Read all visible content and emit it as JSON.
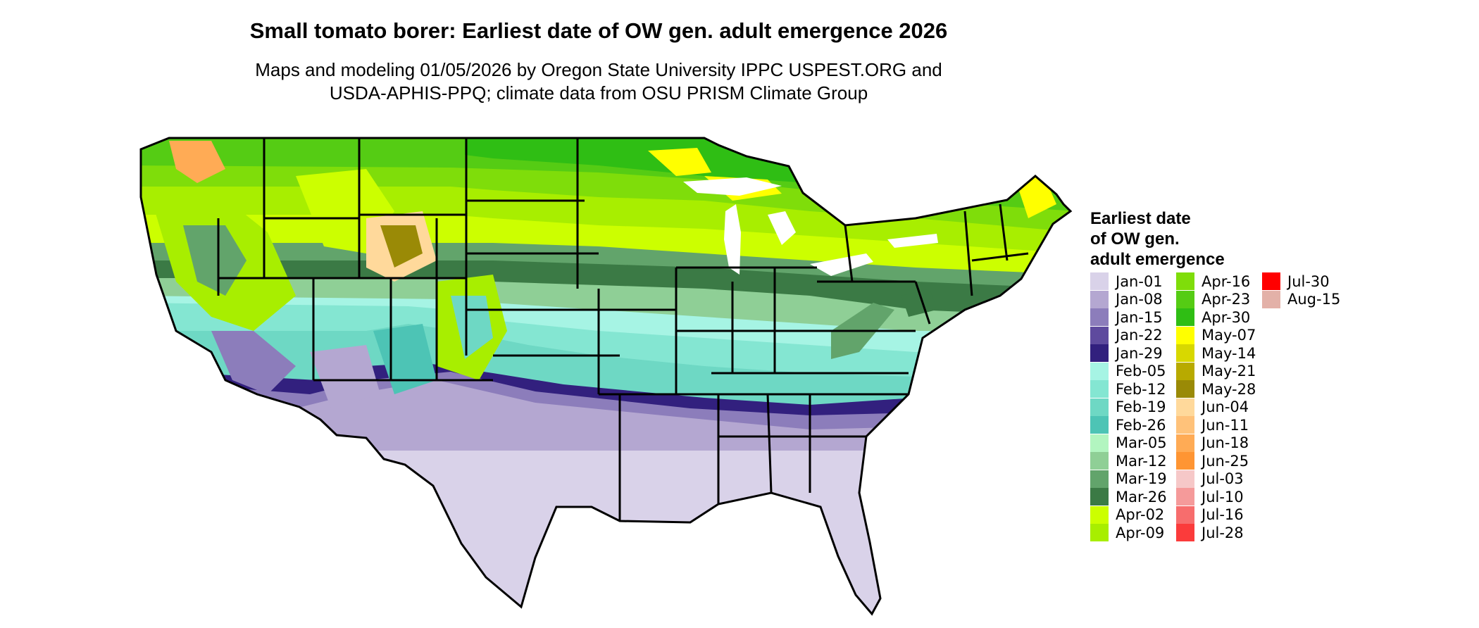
{
  "title": "Small tomato borer: Earliest date of OW gen. adult emergence 2026",
  "subtitle_line1": "Maps and modeling 01/05/2026 by Oregon State University IPPC USPEST.ORG and",
  "subtitle_line2": "USDA-APHIS-PPQ; climate data from OSU PRISM Climate Group",
  "legend": {
    "title_lines": [
      "Earliest date",
      "of OW gen.",
      "adult emergence"
    ],
    "items": [
      {
        "label": "Jan-01",
        "color": "#d9d2e9"
      },
      {
        "label": "Jan-08",
        "color": "#b4a7d1"
      },
      {
        "label": "Jan-15",
        "color": "#8c7dbb"
      },
      {
        "label": "Jan-22",
        "color": "#5e4a9e"
      },
      {
        "label": "Jan-29",
        "color": "#32207e"
      },
      {
        "label": "Feb-05",
        "color": "#a6f4e4"
      },
      {
        "label": "Feb-12",
        "color": "#84e6d2"
      },
      {
        "label": "Feb-19",
        "color": "#6ed8c4"
      },
      {
        "label": "Feb-26",
        "color": "#4dc4b5"
      },
      {
        "label": "Mar-05",
        "color": "#b2f5c0"
      },
      {
        "label": "Mar-12",
        "color": "#8fcf96"
      },
      {
        "label": "Mar-19",
        "color": "#62a46b"
      },
      {
        "label": "Mar-26",
        "color": "#3b7a45"
      },
      {
        "label": "Apr-02",
        "color": "#ccff00"
      },
      {
        "label": "Apr-09",
        "color": "#a8ee00"
      },
      {
        "label": "Apr-16",
        "color": "#7fdd0a"
      },
      {
        "label": "Apr-23",
        "color": "#55cc14"
      },
      {
        "label": "Apr-30",
        "color": "#2fbe14"
      },
      {
        "label": "May-07",
        "color": "#ffff00"
      },
      {
        "label": "May-14",
        "color": "#d8d800"
      },
      {
        "label": "May-21",
        "color": "#b8aa00"
      },
      {
        "label": "May-28",
        "color": "#9a8a06"
      },
      {
        "label": "Jun-04",
        "color": "#ffd99b"
      },
      {
        "label": "Jun-11",
        "color": "#ffc27a"
      },
      {
        "label": "Jun-18",
        "color": "#ffab55"
      },
      {
        "label": "Jun-25",
        "color": "#ff9533"
      },
      {
        "label": "Jul-03",
        "color": "#f6c8c8"
      },
      {
        "label": "Jul-10",
        "color": "#f59a9a"
      },
      {
        "label": "Jul-16",
        "color": "#f76d6d"
      },
      {
        "label": "Jul-28",
        "color": "#fb3b3b"
      },
      {
        "label": "Jul-30",
        "color": "#ff0000"
      },
      {
        "label": "Aug-15",
        "color": "#e3b1a8"
      }
    ]
  }
}
